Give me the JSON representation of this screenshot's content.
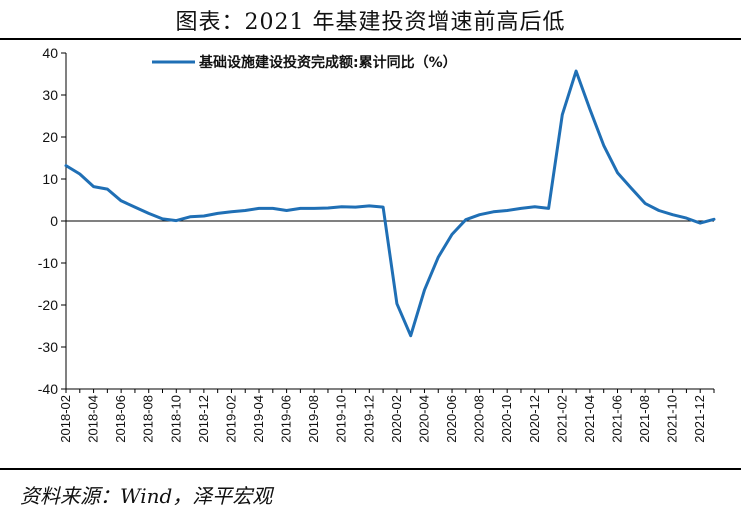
{
  "figure_title": "图表：2021 年基建投资增速前高后低",
  "source": "资料来源：Wind，泽平宏观",
  "chart_data": {
    "type": "line",
    "color": "#1f6fb5",
    "legend_position": "top-center",
    "grid": false,
    "ylim": [
      -40,
      40
    ],
    "yticks": [
      -40,
      -30,
      -20,
      -10,
      0,
      10,
      20,
      30,
      40
    ],
    "x": [
      "2018-02",
      "2018-03",
      "2018-04",
      "2018-05",
      "2018-06",
      "2018-07",
      "2018-08",
      "2018-09",
      "2018-10",
      "2018-11",
      "2018-12",
      "2019-01",
      "2019-02",
      "2019-03",
      "2019-04",
      "2019-05",
      "2019-06",
      "2019-07",
      "2019-08",
      "2019-09",
      "2019-10",
      "2019-11",
      "2019-12",
      "2020-01",
      "2020-02",
      "2020-03",
      "2020-04",
      "2020-05",
      "2020-06",
      "2020-07",
      "2020-08",
      "2020-09",
      "2020-10",
      "2020-11",
      "2020-12",
      "2021-01",
      "2021-02",
      "2021-03",
      "2021-04",
      "2021-05",
      "2021-06",
      "2021-07",
      "2021-08",
      "2021-09",
      "2021-10",
      "2021-11",
      "2021-12",
      "2022-01"
    ],
    "xtick_labels": [
      "2018-02",
      "2018-04",
      "2018-06",
      "2018-08",
      "2018-10",
      "2018-12",
      "2019-02",
      "2019-04",
      "2019-06",
      "2019-08",
      "2019-10",
      "2019-12",
      "2020-02",
      "2020-04",
      "2020-06",
      "2020-08",
      "2020-10",
      "2020-12",
      "2021-02",
      "2021-04",
      "2021-06",
      "2021-08",
      "2021-10",
      "2021-12"
    ],
    "series": [
      {
        "name": "基础设施建设投资完成额:累计同比（%）",
        "values": [
          13.2,
          11.2,
          8.2,
          7.6,
          4.8,
          3.3,
          1.8,
          0.5,
          0.1,
          1.0,
          1.2,
          1.8,
          2.2,
          2.5,
          3.0,
          3.0,
          2.5,
          3.0,
          3.0,
          3.1,
          3.4,
          3.3,
          3.6,
          3.3,
          -19.7,
          -27.3,
          -16.4,
          -8.6,
          -3.2,
          0.3,
          1.5,
          2.2,
          2.5,
          3.0,
          3.4,
          3.0,
          25.3,
          35.7,
          26.6,
          18.0,
          11.5,
          7.8,
          4.2,
          2.5,
          1.5,
          0.7,
          -0.5,
          0.4
        ]
      }
    ]
  }
}
